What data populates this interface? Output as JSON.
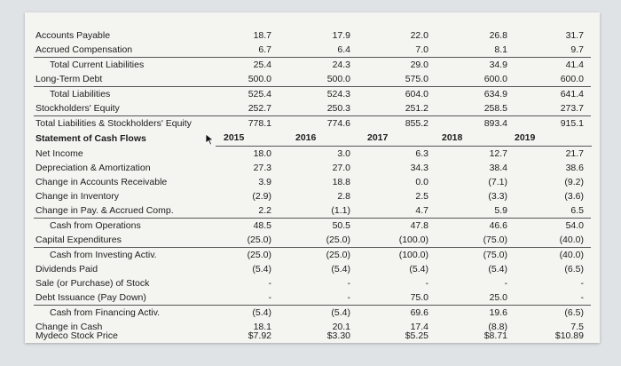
{
  "years": [
    "2015",
    "2016",
    "2017",
    "2018",
    "2019"
  ],
  "rows": [
    {
      "label": "Accounts Payable",
      "vals": [
        "18.7",
        "17.9",
        "22.0",
        "26.8",
        "31.7"
      ]
    },
    {
      "label": "Accrued Compensation",
      "vals": [
        "6.7",
        "6.4",
        "7.0",
        "8.1",
        "9.7"
      ]
    },
    {
      "label": "Total Current Liabilities",
      "vals": [
        "25.4",
        "24.3",
        "29.0",
        "34.9",
        "41.4"
      ]
    },
    {
      "label": "Long-Term Debt",
      "vals": [
        "500.0",
        "500.0",
        "575.0",
        "600.0",
        "600.0"
      ]
    },
    {
      "label": "Total Liabilities",
      "vals": [
        "525.4",
        "524.3",
        "604.0",
        "634.9",
        "641.4"
      ]
    },
    {
      "label": "Stockholders' Equity",
      "vals": [
        "252.7",
        "250.3",
        "251.2",
        "258.5",
        "273.7"
      ]
    },
    {
      "label": "Total Liabilities & Stockholders' Equity",
      "vals": [
        "778.1",
        "774.6",
        "855.2",
        "893.4",
        "915.1"
      ]
    },
    {
      "label": "Statement of Cash Flows",
      "vals": [
        "",
        "",
        "",
        "",
        ""
      ]
    },
    {
      "label": "Net Income",
      "vals": [
        "18.0",
        "3.0",
        "6.3",
        "12.7",
        "21.7"
      ]
    },
    {
      "label": "Depreciation & Amortization",
      "vals": [
        "27.3",
        "27.0",
        "34.3",
        "38.4",
        "38.6"
      ]
    },
    {
      "label": "Change in Accounts Receivable",
      "vals": [
        "3.9",
        "18.8",
        "0.0",
        "(7.1)",
        "(9.2)"
      ]
    },
    {
      "label": "Change in Inventory",
      "vals": [
        "(2.9)",
        "2.8",
        "2.5",
        "(3.3)",
        "(3.6)"
      ]
    },
    {
      "label": "Change in Pay. & Accrued Comp.",
      "vals": [
        "2.2",
        "(1.1)",
        "4.7",
        "5.9",
        "6.5"
      ]
    },
    {
      "label": "Cash from Operations",
      "vals": [
        "48.5",
        "50.5",
        "47.8",
        "46.6",
        "54.0"
      ]
    },
    {
      "label": "Capital Expenditures",
      "vals": [
        "(25.0)",
        "(25.0)",
        "(100.0)",
        "(75.0)",
        "(40.0)"
      ]
    },
    {
      "label": "Cash from Investing Activ.",
      "vals": [
        "(25.0)",
        "(25.0)",
        "(100.0)",
        "(75.0)",
        "(40.0)"
      ]
    },
    {
      "label": "Dividends Paid",
      "vals": [
        "(5.4)",
        "(5.4)",
        "(5.4)",
        "(5.4)",
        "(6.5)"
      ]
    },
    {
      "label": "Sale (or Purchase) of Stock",
      "vals": [
        "-",
        "-",
        "-",
        "-",
        "-"
      ]
    },
    {
      "label": "Debt Issuance (Pay Down)",
      "vals": [
        "-",
        "-",
        "75.0",
        "25.0",
        "-"
      ]
    },
    {
      "label": "Cash from Financing Activ.",
      "vals": [
        "(5.4)",
        "(5.4)",
        "69.6",
        "19.6",
        "(6.5)"
      ]
    },
    {
      "label": "Change in Cash",
      "vals": [
        "18.1",
        "20.1",
        "17.4",
        "(8.8)",
        "7.5"
      ]
    },
    {
      "label": "Mydeco Stock Price",
      "vals": [
        "$7.92",
        "$3.30",
        "$5.25",
        "$8.71",
        "$10.89"
      ]
    }
  ]
}
